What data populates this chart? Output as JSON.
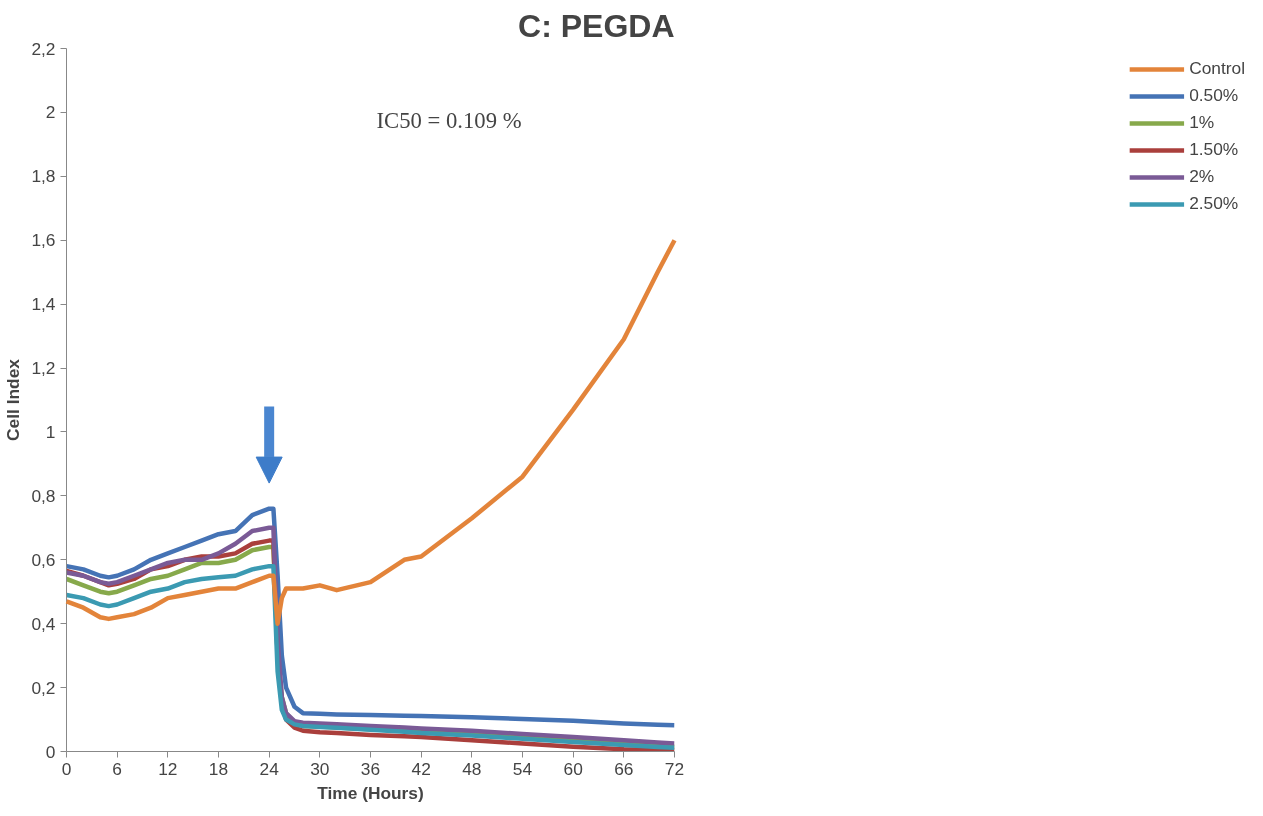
{
  "chart_data": {
    "type": "line",
    "title": "C: PEGDA",
    "xlabel": "Time (Hours)",
    "ylabel": "Cell Index",
    "annotations": [
      "IC50 = 0.109 %"
    ],
    "x": [
      0,
      2,
      4,
      5,
      6,
      8,
      10,
      12,
      14,
      16,
      18,
      20,
      22,
      24,
      24.5,
      25,
      25.5,
      26,
      27,
      28,
      30,
      32,
      36,
      40,
      42,
      48,
      54,
      60,
      66,
      70,
      72
    ],
    "series": [
      {
        "name": "Control",
        "color": "#e3843a",
        "values": [
          0.47,
          0.45,
          0.42,
          0.415,
          0.42,
          0.43,
          0.45,
          0.48,
          0.49,
          0.5,
          0.51,
          0.51,
          0.53,
          0.55,
          0.55,
          0.4,
          0.48,
          0.51,
          0.51,
          0.51,
          0.52,
          0.505,
          0.53,
          0.6,
          0.61,
          0.73,
          0.86,
          1.07,
          1.29,
          1.5,
          1.6
        ]
      },
      {
        "name": "0.50%",
        "color": "#4573b5",
        "values": [
          0.58,
          0.57,
          0.55,
          0.545,
          0.55,
          0.57,
          0.6,
          0.62,
          0.64,
          0.66,
          0.68,
          0.69,
          0.74,
          0.76,
          0.76,
          0.55,
          0.3,
          0.2,
          0.14,
          0.12,
          0.118,
          0.116,
          0.114,
          0.112,
          0.111,
          0.107,
          0.102,
          0.096,
          0.088,
          0.084,
          0.082
        ]
      },
      {
        "name": "1%",
        "color": "#87a94b",
        "values": [
          0.54,
          0.52,
          0.5,
          0.495,
          0.5,
          0.52,
          0.54,
          0.55,
          0.57,
          0.59,
          0.59,
          0.6,
          0.63,
          0.64,
          0.64,
          0.3,
          0.17,
          0.12,
          0.09,
          0.08,
          0.078,
          0.075,
          0.07,
          0.065,
          0.062,
          0.055,
          0.045,
          0.035,
          0.025,
          0.018,
          0.015
        ]
      },
      {
        "name": "1.50%",
        "color": "#aa3f3c",
        "values": [
          0.565,
          0.55,
          0.53,
          0.52,
          0.525,
          0.54,
          0.57,
          0.58,
          0.6,
          0.61,
          0.61,
          0.62,
          0.65,
          0.66,
          0.66,
          0.3,
          0.15,
          0.1,
          0.075,
          0.065,
          0.06,
          0.058,
          0.052,
          0.048,
          0.045,
          0.035,
          0.025,
          0.015,
          0.007,
          0.005,
          0.005
        ]
      },
      {
        "name": "2%",
        "color": "#7a5a96",
        "values": [
          0.56,
          0.55,
          0.53,
          0.525,
          0.53,
          0.55,
          0.57,
          0.59,
          0.6,
          0.6,
          0.62,
          0.65,
          0.69,
          0.7,
          0.7,
          0.35,
          0.17,
          0.12,
          0.095,
          0.09,
          0.088,
          0.085,
          0.08,
          0.075,
          0.072,
          0.065,
          0.055,
          0.045,
          0.035,
          0.028,
          0.025
        ]
      },
      {
        "name": "2.50%",
        "color": "#3b9ab2",
        "values": [
          0.49,
          0.48,
          0.46,
          0.455,
          0.46,
          0.48,
          0.5,
          0.51,
          0.53,
          0.54,
          0.545,
          0.55,
          0.57,
          0.58,
          0.58,
          0.25,
          0.13,
          0.1,
          0.085,
          0.08,
          0.077,
          0.074,
          0.068,
          0.062,
          0.058,
          0.05,
          0.04,
          0.03,
          0.02,
          0.014,
          0.012
        ]
      }
    ],
    "xlim": [
      0,
      72
    ],
    "xticks": [
      0,
      6,
      12,
      18,
      24,
      30,
      36,
      42,
      48,
      54,
      60,
      66,
      72
    ],
    "ylim": [
      0,
      2.2
    ],
    "yticks": [
      0,
      {
        "value": 0.2,
        "label": "0,2"
      },
      {
        "value": 0.4,
        "label": "0,4"
      },
      {
        "value": 0.6,
        "label": "0,6"
      },
      {
        "value": 0.8,
        "label": "0,8"
      },
      1,
      {
        "value": 1.2,
        "label": "1,2"
      },
      {
        "value": 1.4,
        "label": "1,4"
      },
      {
        "value": 1.6,
        "label": "1,6"
      },
      {
        "value": 1.8,
        "label": "1,8"
      },
      2,
      {
        "value": 2.2,
        "label": "2,2"
      }
    ],
    "grid": false,
    "legend": "right",
    "marker": "none",
    "line_style": "solid"
  }
}
